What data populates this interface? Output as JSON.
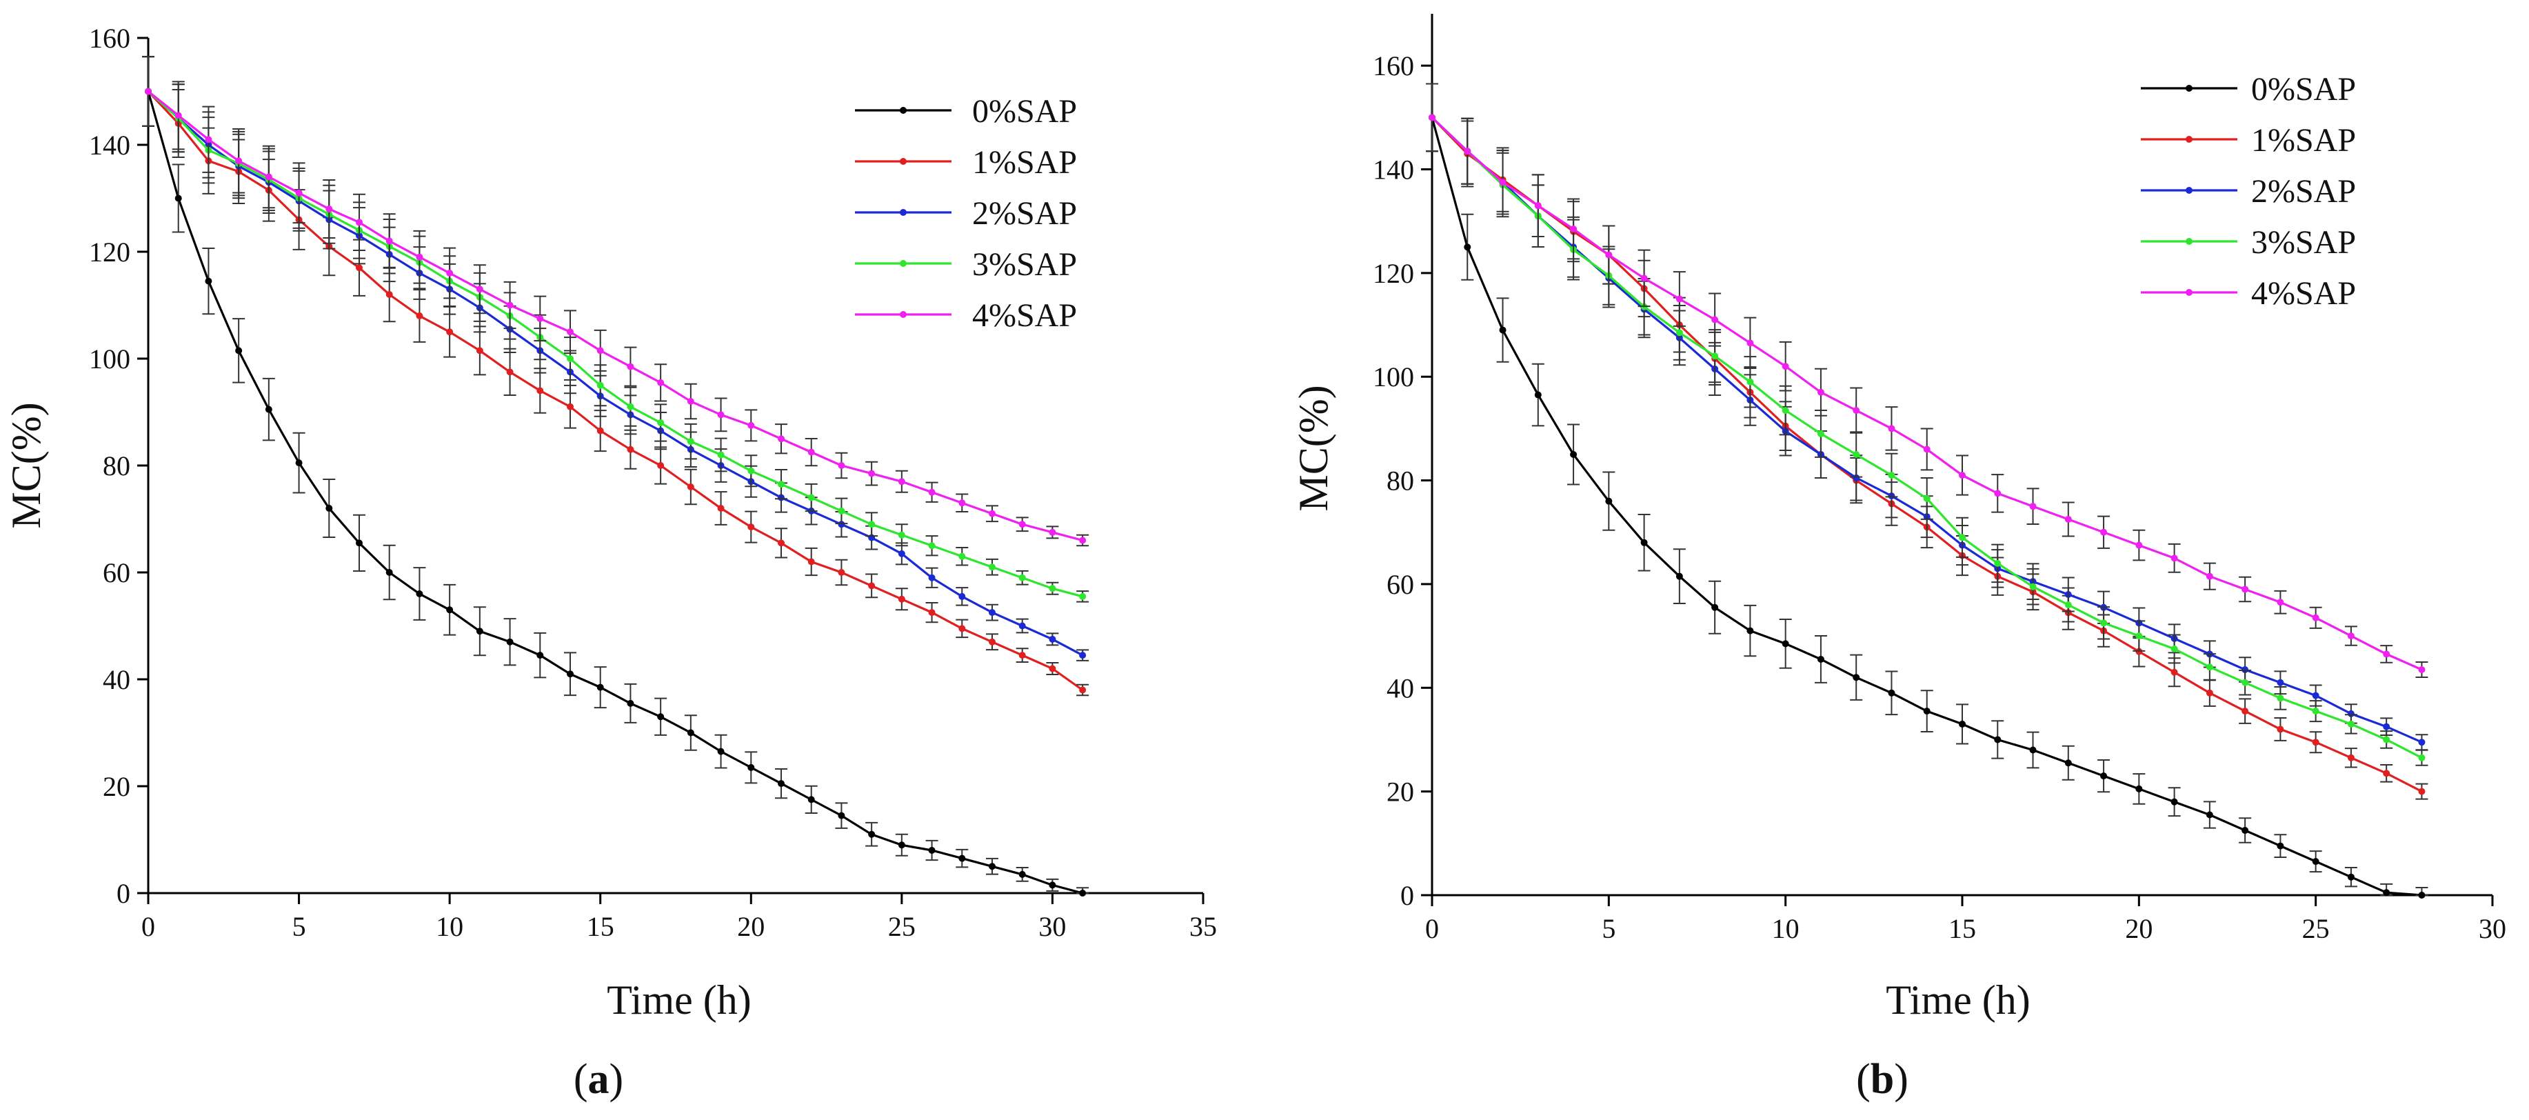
{
  "chart_data": [
    {
      "type": "line",
      "panel_label": "(a)",
      "label_letter": "a",
      "title": "",
      "xlabel": "Time (h)",
      "ylabel": "MC(%)",
      "xlim": [
        0,
        35
      ],
      "ylim": [
        0,
        160
      ],
      "xticks": [
        0,
        5,
        10,
        15,
        20,
        25,
        30,
        35
      ],
      "yticks": [
        0,
        20,
        40,
        60,
        80,
        100,
        120,
        140,
        160
      ],
      "legend_position": "top-right",
      "grid": false,
      "series": [
        {
          "name": "0%SAP",
          "color": "#000000",
          "x": [
            0,
            1,
            2,
            3,
            4,
            5,
            6,
            7,
            8,
            9,
            10,
            11,
            12,
            13,
            14,
            15,
            16,
            17,
            18,
            19,
            20,
            21,
            22,
            23,
            24,
            25,
            26,
            27,
            28,
            29,
            30,
            31
          ],
          "y": [
            150,
            130,
            114.5,
            101.5,
            90.5,
            80.5,
            72,
            65.5,
            60,
            56,
            53,
            49,
            47,
            44.5,
            41,
            38.5,
            35.5,
            33,
            30,
            26.5,
            23.5,
            20.5,
            17.5,
            14.5,
            11,
            9,
            8,
            6.5,
            5,
            3.5,
            1.5,
            0
          ]
        },
        {
          "name": "1%SAP",
          "color": "#e02020",
          "x": [
            0,
            1,
            2,
            3,
            4,
            5,
            6,
            7,
            8,
            9,
            10,
            11,
            12,
            13,
            14,
            15,
            16,
            17,
            18,
            19,
            20,
            21,
            22,
            23,
            24,
            25,
            26,
            27,
            28,
            29,
            30,
            31
          ],
          "y": [
            150,
            144,
            137,
            135,
            131.5,
            126,
            121,
            117,
            112,
            108,
            105,
            101.5,
            97.5,
            94,
            91,
            86.5,
            83,
            80,
            76,
            72,
            68.5,
            65.5,
            62,
            60,
            57.5,
            55,
            52.5,
            49.5,
            47,
            44.5,
            42,
            38
          ]
        },
        {
          "name": "2%SAP",
          "color": "#1a2bd6",
          "x": [
            0,
            1,
            2,
            3,
            4,
            5,
            6,
            7,
            8,
            9,
            10,
            11,
            12,
            13,
            14,
            15,
            16,
            17,
            18,
            19,
            20,
            21,
            22,
            23,
            24,
            25,
            26,
            27,
            28,
            29,
            30,
            31
          ],
          "y": [
            150,
            145,
            140,
            136,
            133,
            129.5,
            126,
            123,
            119.5,
            116,
            113,
            109.5,
            105.5,
            101.5,
            97.5,
            93,
            89.5,
            86.5,
            83,
            80,
            77,
            74,
            71.5,
            69,
            66.5,
            63.5,
            59,
            55.5,
            52.5,
            50,
            47.5,
            44.5
          ]
        },
        {
          "name": "3%SAP",
          "color": "#2ee62e",
          "x": [
            0,
            1,
            2,
            3,
            4,
            5,
            6,
            7,
            8,
            9,
            10,
            11,
            12,
            13,
            14,
            15,
            16,
            17,
            18,
            19,
            20,
            21,
            22,
            23,
            24,
            25,
            26,
            27,
            28,
            29,
            30,
            31
          ],
          "y": [
            150,
            145,
            139,
            136.5,
            133.5,
            130,
            127,
            124,
            121,
            118,
            114.5,
            111.5,
            108,
            104,
            100,
            95,
            91,
            88,
            84.5,
            82,
            79,
            76.5,
            74,
            71.5,
            69,
            67,
            65,
            63,
            61,
            59,
            57,
            55.5
          ]
        },
        {
          "name": "4%SAP",
          "color": "#f020f0",
          "x": [
            0,
            1,
            2,
            3,
            4,
            5,
            6,
            7,
            8,
            9,
            10,
            11,
            12,
            13,
            14,
            15,
            16,
            17,
            18,
            19,
            20,
            21,
            22,
            23,
            24,
            25,
            26,
            27,
            28,
            29,
            30,
            31
          ],
          "y": [
            150,
            145.5,
            141,
            137,
            134,
            131,
            128,
            125.5,
            122,
            119,
            116,
            113,
            110,
            107.5,
            105,
            101.5,
            98.5,
            95.5,
            92,
            89.5,
            87.5,
            85,
            82.5,
            80,
            78.5,
            77,
            75,
            73,
            71,
            69,
            67.5,
            66
          ]
        }
      ]
    },
    {
      "type": "line",
      "panel_label": "(b)",
      "label_letter": "b",
      "title": "",
      "xlabel": "Time (h)",
      "ylabel": "MC(%)",
      "xlim": [
        0,
        30
      ],
      "ylim": [
        0,
        170
      ],
      "xticks": [
        0,
        5,
        10,
        15,
        20,
        25,
        30
      ],
      "yticks": [
        0,
        20,
        40,
        60,
        80,
        100,
        120,
        140,
        160
      ],
      "legend_position": "top-right",
      "grid": false,
      "series": [
        {
          "name": "0%SAP",
          "color": "#000000",
          "x": [
            0,
            1,
            2,
            3,
            4,
            5,
            6,
            7,
            8,
            9,
            10,
            11,
            12,
            13,
            14,
            15,
            16,
            17,
            18,
            19,
            20,
            21,
            22,
            23,
            24,
            25,
            26,
            27,
            28
          ],
          "y": [
            150,
            125,
            109,
            96.5,
            85,
            76,
            68,
            61.5,
            55.5,
            51,
            48.5,
            45.5,
            42,
            39,
            35.5,
            33,
            30,
            28,
            25.5,
            23,
            20.5,
            18,
            15.5,
            12.5,
            9.5,
            6.5,
            3.5,
            0.5,
            0
          ]
        },
        {
          "name": "1%SAP",
          "color": "#e02020",
          "x": [
            0,
            1,
            2,
            3,
            4,
            5,
            6,
            7,
            8,
            9,
            10,
            11,
            12,
            13,
            14,
            15,
            16,
            17,
            18,
            19,
            20,
            21,
            22,
            23,
            24,
            25,
            26,
            27,
            28
          ],
          "y": [
            150,
            143,
            138,
            133,
            128,
            123.5,
            117,
            110,
            103.5,
            97,
            90.5,
            85,
            80,
            75.5,
            71,
            65.5,
            61.5,
            58.5,
            54.5,
            51,
            47,
            43,
            39,
            35.5,
            32,
            29.5,
            26.5,
            23.5,
            20
          ]
        },
        {
          "name": "2%SAP",
          "color": "#1a2bd6",
          "x": [
            0,
            1,
            2,
            3,
            4,
            5,
            6,
            7,
            8,
            9,
            10,
            11,
            12,
            13,
            14,
            15,
            16,
            17,
            18,
            19,
            20,
            21,
            22,
            23,
            24,
            25,
            26,
            27,
            28
          ],
          "y": [
            150,
            143.5,
            137.5,
            131,
            125,
            119,
            113,
            107.5,
            101.5,
            95.5,
            89.5,
            85,
            80.5,
            77,
            73,
            67.5,
            63,
            60.5,
            58,
            55.5,
            52.5,
            49.5,
            46.5,
            43.5,
            41,
            38.5,
            35,
            32.5,
            29.5
          ]
        },
        {
          "name": "3%SAP",
          "color": "#2ee62e",
          "x": [
            0,
            1,
            2,
            3,
            4,
            5,
            6,
            7,
            8,
            9,
            10,
            11,
            12,
            13,
            14,
            15,
            16,
            17,
            18,
            19,
            20,
            21,
            22,
            23,
            24,
            25,
            26,
            27,
            28
          ],
          "y": [
            150,
            143.5,
            137,
            131,
            124.5,
            119.5,
            113.5,
            108.5,
            104,
            99,
            93.5,
            89,
            85,
            81,
            76.5,
            69,
            64,
            59.5,
            56,
            52.5,
            50,
            47.5,
            44,
            41,
            38,
            35.5,
            33,
            30,
            26.5
          ]
        },
        {
          "name": "4%SAP",
          "color": "#f020f0",
          "x": [
            0,
            1,
            2,
            3,
            4,
            5,
            6,
            7,
            8,
            9,
            10,
            11,
            12,
            13,
            14,
            15,
            16,
            17,
            18,
            19,
            20,
            21,
            22,
            23,
            24,
            25,
            26,
            27,
            28
          ],
          "y": [
            150,
            143.5,
            137.5,
            133,
            128.5,
            123.5,
            119,
            115,
            111,
            106.5,
            102,
            97,
            93.5,
            90,
            86,
            81,
            77.5,
            75,
            72.5,
            70,
            67.5,
            65,
            61.5,
            59,
            56.5,
            53.5,
            50,
            46.5,
            43.5
          ]
        }
      ]
    }
  ]
}
